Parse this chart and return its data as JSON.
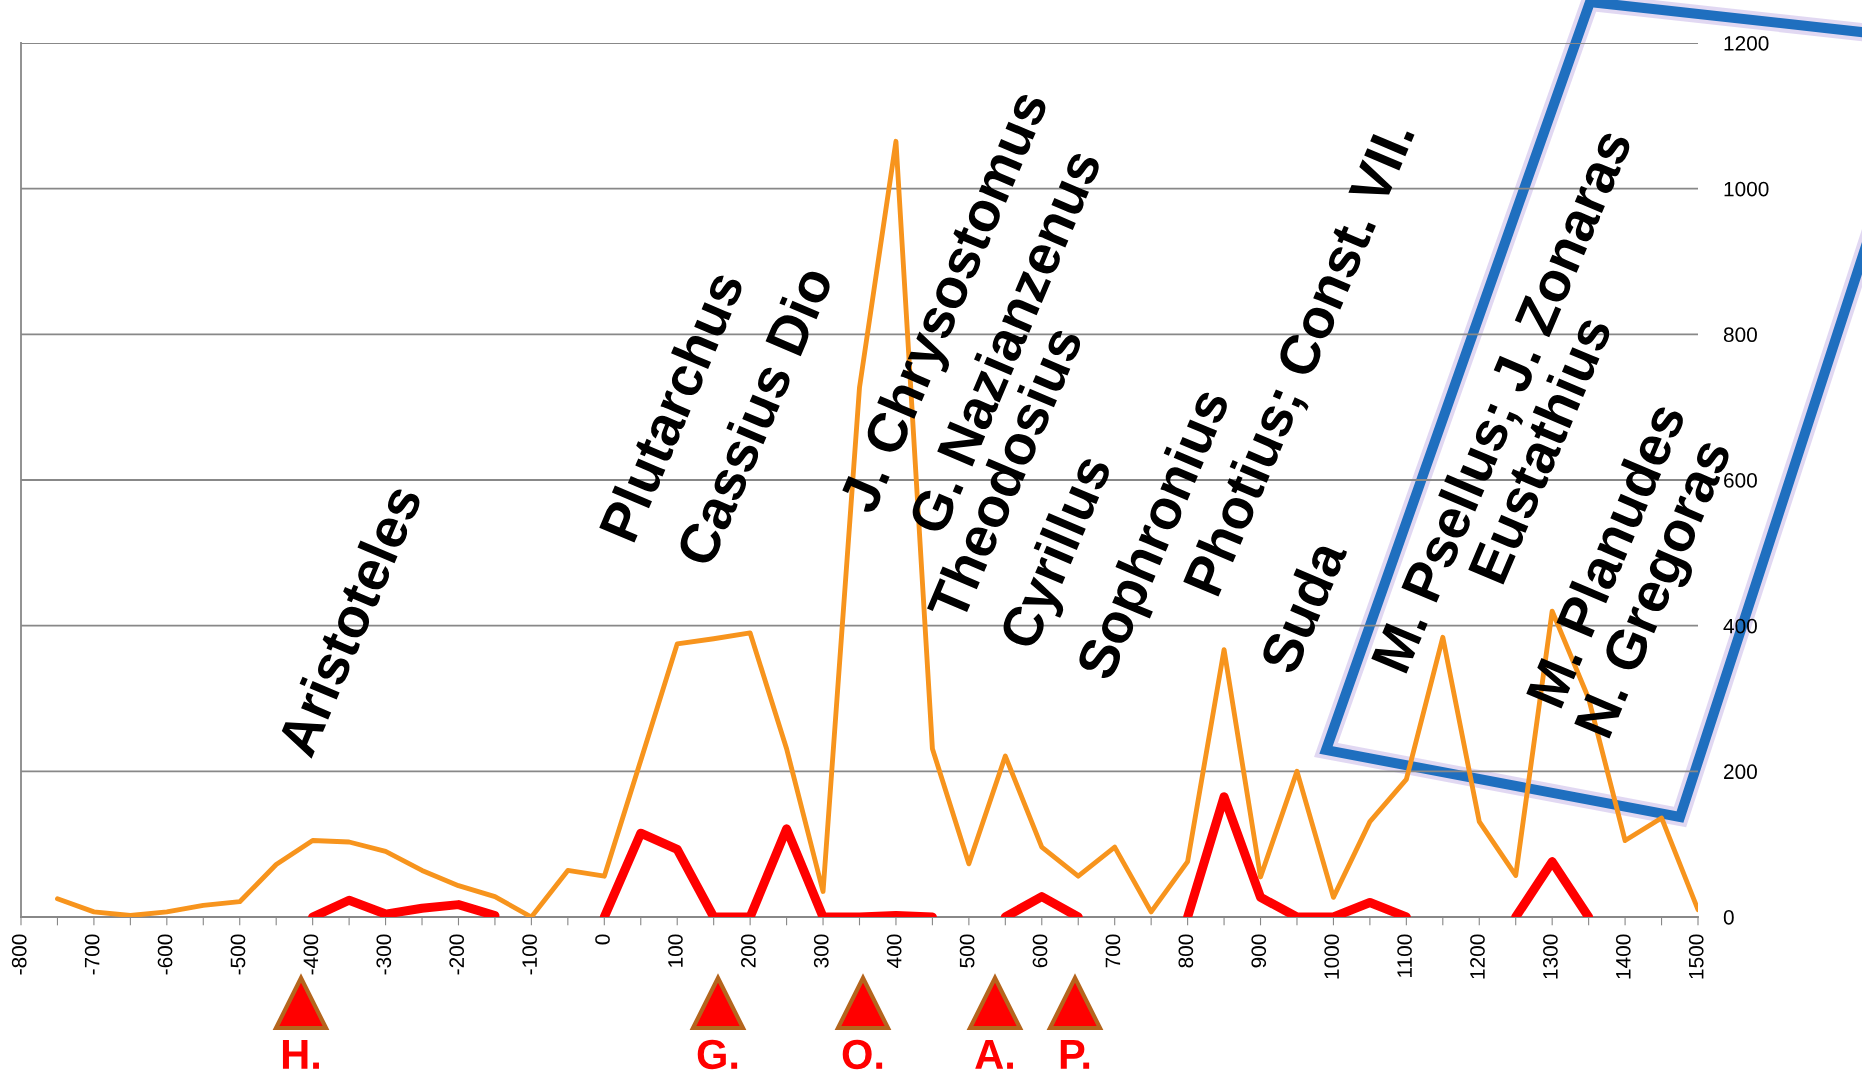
{
  "chart_data": {
    "type": "line",
    "x": [
      -750,
      -700,
      -650,
      -600,
      -550,
      -500,
      -450,
      -400,
      -350,
      -300,
      -250,
      -200,
      -150,
      -100,
      -50,
      0,
      50,
      100,
      150,
      200,
      250,
      300,
      350,
      400,
      450,
      500,
      550,
      600,
      650,
      700,
      750,
      800,
      850,
      900,
      950,
      1000,
      1050,
      1100,
      1150,
      1200,
      1250,
      1300,
      1350,
      1400,
      1450,
      1500
    ],
    "series": [
      {
        "color": "#f7941d",
        "values": [
          25,
          7,
          2,
          7,
          16,
          21,
          72,
          105,
          103,
          90,
          64,
          43,
          28,
          0,
          64,
          56,
          215,
          375,
          382,
          390,
          231,
          35,
          727,
          1065,
          231,
          73,
          221,
          96,
          56,
          96,
          7,
          76,
          367,
          55,
          200,
          27,
          131,
          189,
          384,
          131,
          57,
          420,
          300,
          105,
          136,
          10
        ]
      },
      {
        "color": "#ff0000",
        "values": [
          null,
          null,
          null,
          null,
          null,
          null,
          null,
          0,
          23,
          4,
          12,
          17,
          2,
          null,
          null,
          0,
          115,
          93,
          0,
          0,
          121,
          0,
          0,
          2,
          0,
          null,
          0,
          28,
          0,
          null,
          null,
          0,
          165,
          27,
          0,
          0,
          20,
          0,
          null,
          null,
          0,
          76,
          0,
          null,
          null,
          null
        ]
      }
    ],
    "xlim": [
      -800,
      1500
    ],
    "xticks": [
      -800,
      {
        "value": -750,
        "label": null
      },
      -700,
      {
        "value": -650,
        "label": null
      },
      -600,
      {
        "value": -550,
        "label": null
      },
      -500,
      {
        "value": -450,
        "label": null
      },
      -400,
      {
        "value": -350,
        "label": null
      },
      -300,
      {
        "value": -250,
        "label": null
      },
      -200,
      {
        "value": -150,
        "label": null
      },
      -100,
      {
        "value": -50,
        "label": null
      },
      0,
      {
        "value": 50,
        "label": null
      },
      100,
      {
        "value": 150,
        "label": null
      },
      200,
      {
        "value": 250,
        "label": null
      },
      300,
      {
        "value": 350,
        "label": null
      },
      400,
      {
        "value": 450,
        "label": null
      },
      500,
      {
        "value": 550,
        "label": null
      },
      600,
      {
        "value": 650,
        "label": null
      },
      700,
      {
        "value": 750,
        "label": null
      },
      800,
      {
        "value": 850,
        "label": null
      },
      900,
      {
        "value": 950,
        "label": null
      },
      1000,
      {
        "value": 1050,
        "label": null
      },
      1100,
      {
        "value": 1150,
        "label": null
      },
      1200,
      {
        "value": 1250,
        "label": null
      },
      1300,
      {
        "value": 1350,
        "label": null
      },
      1400,
      {
        "value": 1450,
        "label": null
      },
      1500
    ],
    "ylim": [
      0,
      1200
    ],
    "yticks": [
      0,
      200,
      400,
      600,
      800,
      1000,
      1200
    ],
    "grid": "y",
    "marker": "none",
    "line_style": "solid",
    "annotations": [
      "Aristoteles",
      "Plutarchus",
      "Cassius Dio",
      "J. Chrysostomus",
      "G. Nazianzenus",
      "Theodosius",
      "Cyrillus",
      "Sophronius",
      "Photius; Const. VII.",
      "Suda",
      "M. Psellus; J. Zonaras",
      "Eustathius",
      "M. Planudes",
      "N. Gregoras",
      "H.",
      "G.",
      "O.",
      "A.",
      "P."
    ]
  }
}
